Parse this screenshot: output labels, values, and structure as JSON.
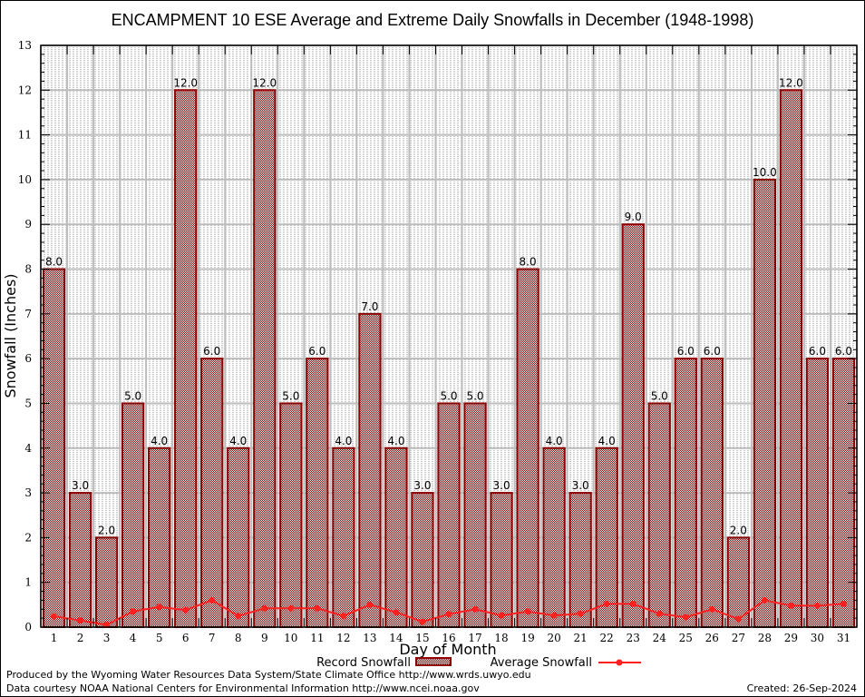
{
  "chart_data": {
    "type": "bar",
    "title": "ENCAMPMENT 10 ESE Average and Extreme Daily Snowfalls in December (1948-1998)",
    "xlabel": "Day of Month",
    "ylabel": "Snowfall (Inches)",
    "ylim": [
      0,
      13
    ],
    "yticks": [
      0,
      1,
      2,
      3,
      4,
      5,
      6,
      7,
      8,
      9,
      10,
      11,
      12,
      13
    ],
    "grid": true,
    "categories": [
      "1",
      "2",
      "3",
      "4",
      "5",
      "6",
      "7",
      "8",
      "9",
      "10",
      "11",
      "12",
      "13",
      "14",
      "15",
      "16",
      "17",
      "18",
      "19",
      "20",
      "21",
      "22",
      "23",
      "24",
      "25",
      "26",
      "27",
      "28",
      "29",
      "30",
      "31"
    ],
    "series": [
      {
        "name": "Record Snowfall",
        "type": "bar",
        "color": "#8b0000",
        "values": [
          8.0,
          3.0,
          2.0,
          5.0,
          4.0,
          12.0,
          6.0,
          4.0,
          12.0,
          5.0,
          6.0,
          4.0,
          7.0,
          4.0,
          3.0,
          5.0,
          5.0,
          3.0,
          8.0,
          4.0,
          3.0,
          4.0,
          9.0,
          5.0,
          6.0,
          6.0,
          2.0,
          10.0,
          12.0,
          6.0,
          6.0
        ],
        "labels": [
          "8.0",
          "3.0",
          "2.0",
          "5.0",
          "4.0",
          "12.0",
          "6.0",
          "4.0",
          "12.0",
          "5.0",
          "6.0",
          "4.0",
          "7.0",
          "4.0",
          "3.0",
          "5.0",
          "5.0",
          "3.0",
          "8.0",
          "4.0",
          "3.0",
          "4.0",
          "9.0",
          "5.0",
          "6.0",
          "6.0",
          "2.0",
          "10.0",
          "12.0",
          "6.0",
          "6.0"
        ]
      },
      {
        "name": "Average Snowfall",
        "type": "line",
        "color": "#ff2020",
        "values": [
          0.24,
          0.15,
          0.05,
          0.35,
          0.45,
          0.38,
          0.6,
          0.25,
          0.42,
          0.42,
          0.42,
          0.25,
          0.5,
          0.33,
          0.12,
          0.29,
          0.4,
          0.26,
          0.35,
          0.26,
          0.3,
          0.52,
          0.52,
          0.3,
          0.22,
          0.4,
          0.18,
          0.6,
          0.48,
          0.48,
          0.52
        ]
      }
    ],
    "legend": "bottom-center"
  },
  "footer": {
    "line1": "Produced by the Wyoming Water Resources Data System/State Climate Office http://www.wrds.uwyo.edu",
    "line2": "Data courtesy NOAA National Centers for Environmental Information http://www.ncei.noaa.gov",
    "created": "Created: 26-Sep-2024"
  }
}
